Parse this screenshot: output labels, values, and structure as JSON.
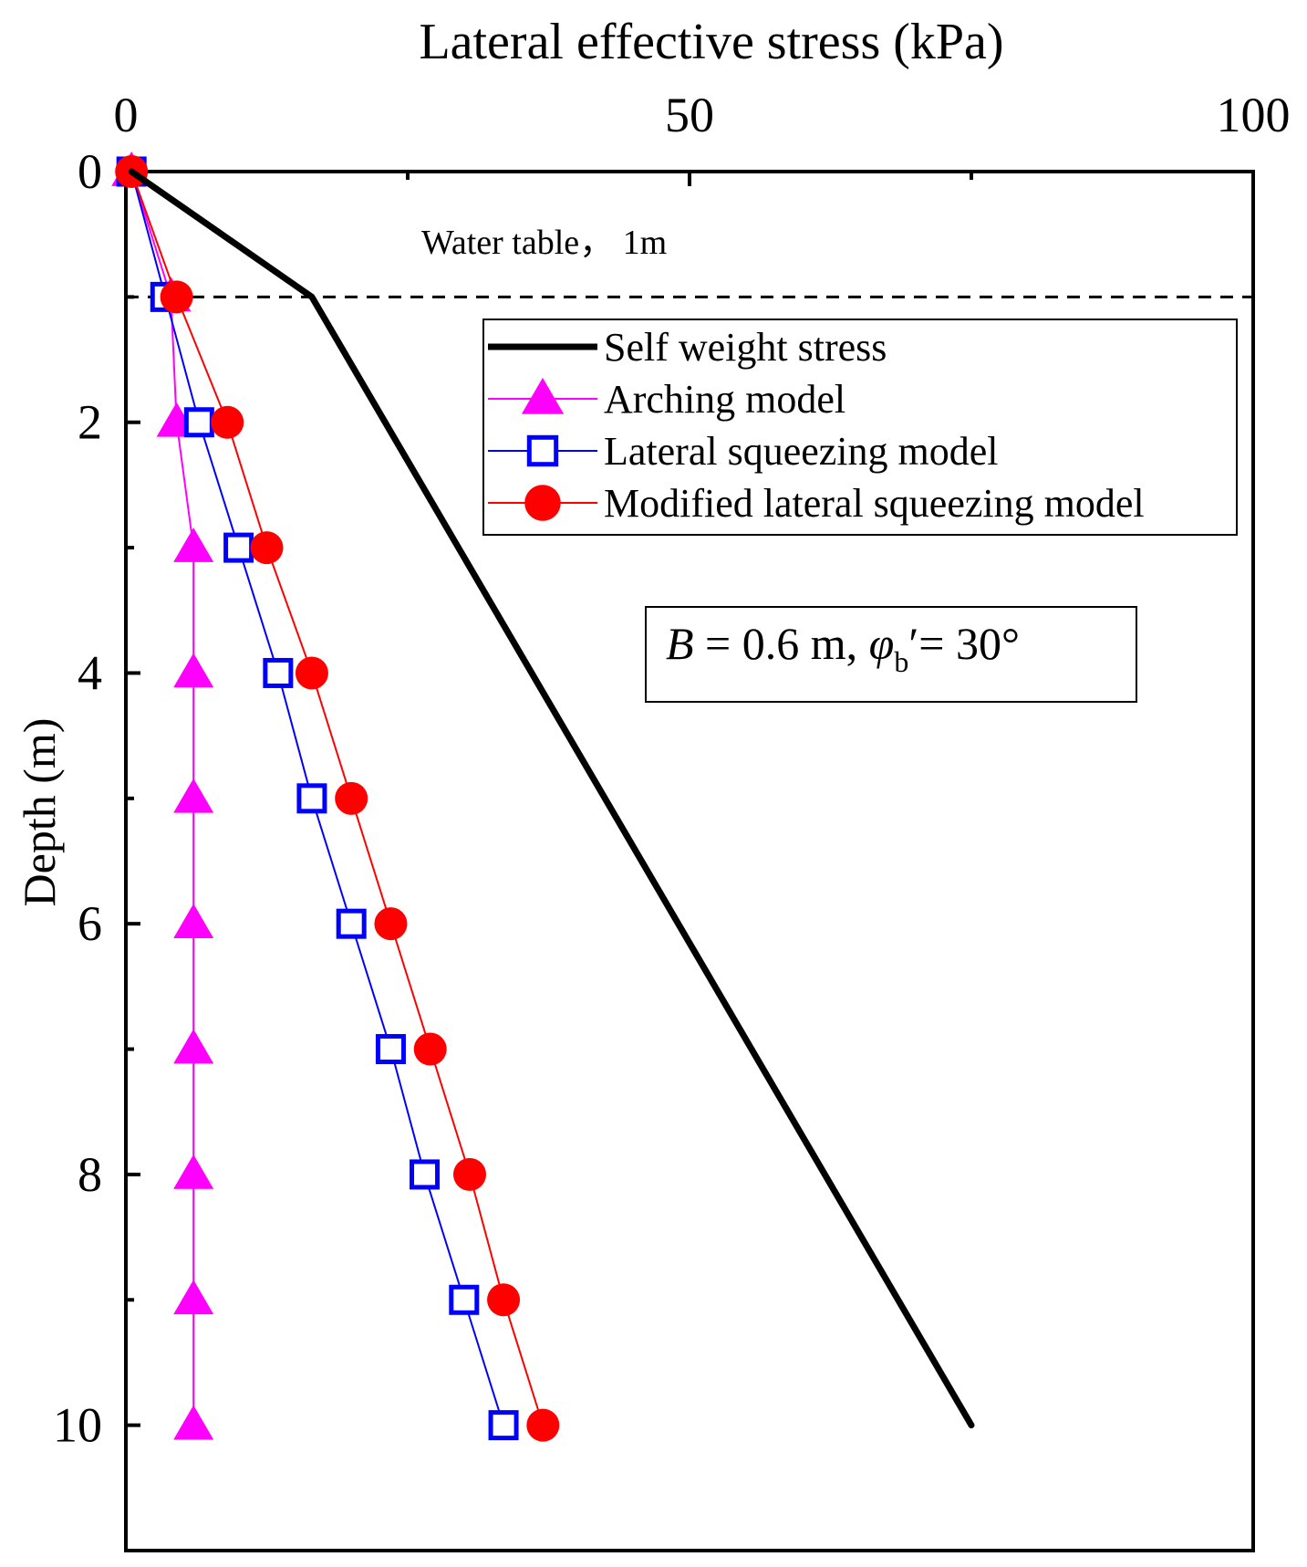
{
  "chart_data": {
    "type": "line",
    "title": "",
    "xlabel": "Lateral effective stress (kPa)",
    "ylabel": "Depth (m)",
    "xlim": [
      0,
      100
    ],
    "ylim": [
      11,
      0
    ],
    "x_axis_position": "top",
    "y_axis_inverted": true,
    "xticks": [
      0,
      50,
      100
    ],
    "xtick_labels": [
      "0",
      "50",
      "100"
    ],
    "yticks": [
      0,
      2,
      4,
      6,
      8,
      10
    ],
    "ytick_labels": [
      "0",
      "2",
      "4",
      "6",
      "8",
      "10"
    ],
    "grid": false,
    "legend_position": "top-right",
    "annotations": {
      "water_table": {
        "label": "Water table， 1m",
        "depth": 1
      },
      "params": {
        "b_symbol": "B",
        "b_value": " = 0.6 m, ",
        "phi_symbol": "φ",
        "phi_sub": "b",
        "phi_rest": "′= 30°"
      }
    },
    "series": [
      {
        "name": "Self weight stress",
        "color": "#000000",
        "marker": "none",
        "x": [
          0.5,
          16.5,
          75
        ],
        "y": [
          0,
          1,
          10
        ]
      },
      {
        "name": "Arching model",
        "color": "#ff00ff",
        "marker": "triangle",
        "x": [
          0.5,
          4,
          4.5,
          6,
          6,
          6,
          6,
          6,
          6,
          6,
          6
        ],
        "y": [
          0,
          1,
          2,
          3,
          4,
          5,
          6,
          7,
          8,
          9,
          10
        ]
      },
      {
        "name": "Lateral squeezing model",
        "color": "#0000ff",
        "marker": "square",
        "x": [
          0.5,
          3.5,
          6.5,
          10,
          13.5,
          16.5,
          20,
          23.5,
          26.5,
          30,
          33.5
        ],
        "y": [
          0,
          1,
          2,
          3,
          4,
          5,
          6,
          7,
          8,
          9,
          10
        ]
      },
      {
        "name": "Modified lateral squeezing model",
        "color": "#ff0000",
        "marker": "circle",
        "x": [
          0.5,
          4.5,
          9,
          12.5,
          16.5,
          20,
          23.5,
          27,
          30.5,
          33.5,
          37
        ],
        "y": [
          0,
          1,
          2,
          3,
          4,
          5,
          6,
          7,
          8,
          9,
          10
        ]
      }
    ]
  }
}
